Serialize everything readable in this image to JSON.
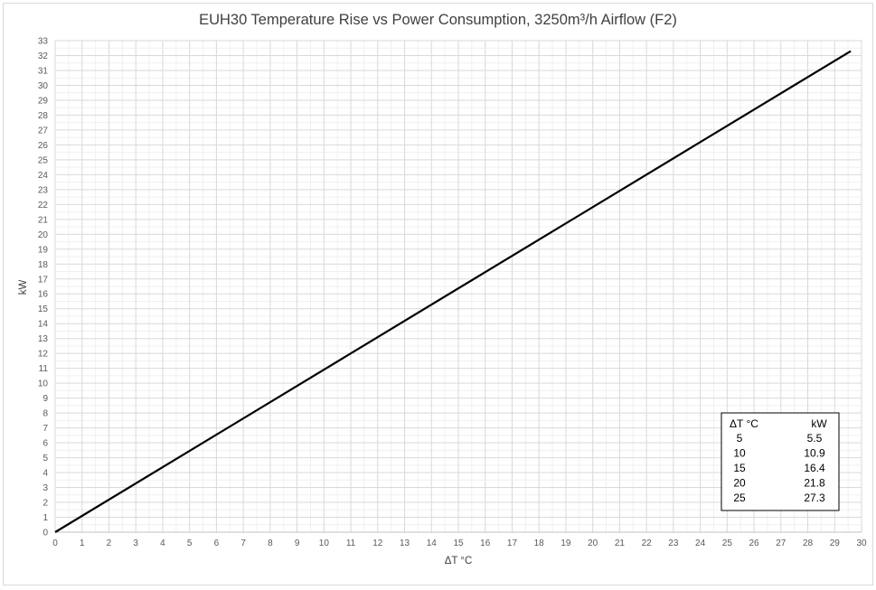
{
  "chart_data": {
    "type": "line",
    "title": "EUH30 Temperature Rise vs Power Consumption, 3250m³/h Airflow (F2)",
    "xlabel": "ΔT °C",
    "ylabel": "kW",
    "xlim": [
      0,
      30
    ],
    "ylim": [
      0,
      33
    ],
    "x_major_step": 1,
    "y_major_step": 1,
    "minor_gridlines_x": 2,
    "minor_gridlines_y": 2,
    "grid": true,
    "legend": "none",
    "line_color": "#000000",
    "series": [
      {
        "x": [
          0,
          29.6
        ],
        "y": [
          0,
          32.3
        ]
      }
    ],
    "table": {
      "placement": "bottom-right",
      "headers": [
        "ΔT °C",
        "kW"
      ],
      "rows": [
        [
          "5",
          "5.5"
        ],
        [
          "10",
          "10.9"
        ],
        [
          "15",
          "16.4"
        ],
        [
          "20",
          "21.8"
        ],
        [
          "25",
          "27.3"
        ]
      ]
    }
  }
}
